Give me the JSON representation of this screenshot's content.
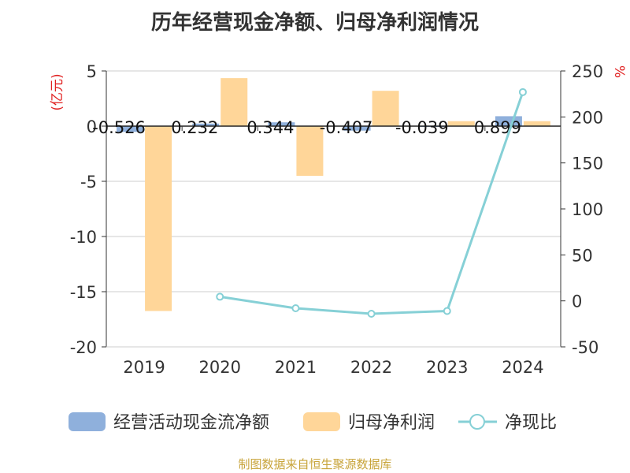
{
  "title": "历年经营现金净额、归母净利润情况",
  "source": "制图数据来自恒生聚源数据库",
  "colors": {
    "ocf": "#8fb0dc",
    "profit": "#ffd699",
    "ratio": "#86d0d6",
    "unit": "#e02020"
  },
  "chart_data": {
    "type": "bar",
    "categories": [
      "2019",
      "2020",
      "2021",
      "2022",
      "2023",
      "2024"
    ],
    "left_axis": {
      "unit": "(亿元)",
      "ylim": [
        -20,
        5
      ],
      "ticks": [
        "5",
        "0",
        "-5",
        "-10",
        "-15",
        "-20"
      ]
    },
    "right_axis": {
      "unit": "%",
      "ylim": [
        -50,
        250
      ],
      "ticks": [
        "250",
        "200",
        "150",
        "100",
        "50",
        "0",
        "-50"
      ]
    },
    "series": [
      {
        "name": "经营活动现金流净额",
        "type": "bar",
        "axis": "left",
        "values": [
          -0.526,
          0.232,
          0.344,
          -0.407,
          -0.039,
          0.899
        ],
        "labels": [
          "-0.526",
          "0.232",
          "0.344",
          "-0.407",
          "-0.039",
          "0.899"
        ]
      },
      {
        "name": "归母净利润",
        "type": "bar",
        "axis": "left",
        "values": [
          -16.75,
          4.35,
          -4.5,
          3.2,
          0.45,
          0.45
        ]
      },
      {
        "name": "净现比",
        "type": "line",
        "axis": "right",
        "values": [
          null,
          4.5,
          -8,
          -14,
          -11,
          227
        ]
      }
    ],
    "grid": true,
    "legend": "bottom"
  }
}
